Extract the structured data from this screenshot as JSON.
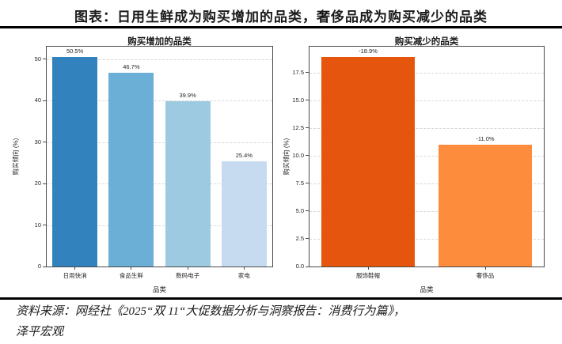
{
  "page": {
    "title": "图表：日用生鲜成为购买增加的品类，奢侈品成为购买减少的品类",
    "source_line1": "资料来源：网经社《2025“双 11“大促数据分析与洞察报告：消费行为篇》，",
    "source_line2": "泽平宏观"
  },
  "colors": {
    "divider": "#000000",
    "grid": "#d8d8d8",
    "frame": "#4a4a4a",
    "text": "#262626"
  },
  "chart_data": [
    {
      "type": "bar",
      "title": "购买增加的品类",
      "xlabel": "品类",
      "ylabel": "购买倾向 (%)",
      "categories": [
        "日用快消",
        "食品生鲜",
        "数码电子",
        "家电"
      ],
      "values": [
        50.5,
        46.7,
        39.9,
        25.4
      ],
      "value_labels": [
        "50.5%",
        "46.7%",
        "39.9%",
        "25.4%"
      ],
      "bar_colors": [
        "#3182bd",
        "#6baed6",
        "#9ecae1",
        "#c6dbef"
      ],
      "yticks": [
        0,
        10,
        20,
        30,
        40,
        50
      ],
      "ytick_labels": [
        "0",
        "10",
        "20",
        "30",
        "40",
        "50"
      ],
      "ylim": [
        0,
        53
      ],
      "grid": true,
      "grid_style": "dashed",
      "legend": "none",
      "bar_width_fraction": 0.8
    },
    {
      "type": "bar",
      "title": "购买减少的品类",
      "xlabel": "品类",
      "ylabel": "购买倾向 (%)",
      "categories": [
        "服饰鞋帽",
        "奢侈品"
      ],
      "values": [
        18.9,
        11.0
      ],
      "value_labels": [
        "-18.9%",
        "-11.0%"
      ],
      "bar_colors": [
        "#e6550d",
        "#fd8d3c"
      ],
      "yticks": [
        0.0,
        2.5,
        5.0,
        7.5,
        10.0,
        12.5,
        15.0,
        17.5
      ],
      "ytick_labels": [
        "0.0",
        "2.5",
        "5.0",
        "7.5",
        "10.0",
        "12.5",
        "15.0",
        "17.5"
      ],
      "ylim": [
        0,
        19.85
      ],
      "grid": true,
      "grid_style": "dashed",
      "legend": "none",
      "bar_width_fraction": 0.8
    }
  ]
}
